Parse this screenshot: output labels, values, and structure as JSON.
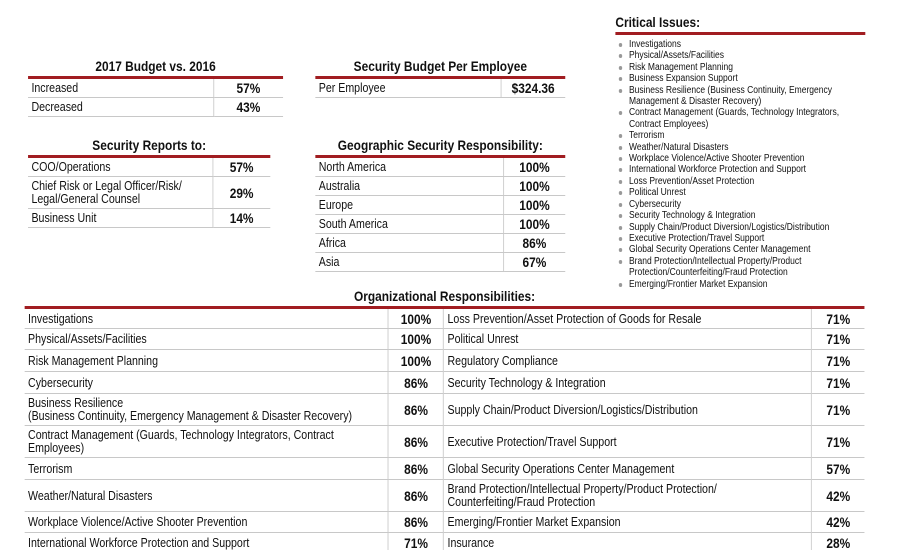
{
  "budget": {
    "title": "2017 Budget vs. 2016",
    "rows": [
      [
        "Increased",
        "57%"
      ],
      [
        "Decreased",
        "43%"
      ]
    ]
  },
  "per_employee": {
    "title": "Security Budget Per Employee",
    "rows": [
      [
        "Per Employee",
        "$324.36"
      ]
    ]
  },
  "reports_to": {
    "title": "Security Reports to:",
    "rows": [
      [
        "COO/Operations",
        "57%"
      ],
      [
        "Chief Risk or Legal Officer/Risk/\nLegal/General Counsel",
        "29%"
      ],
      [
        "Business Unit",
        "14%"
      ]
    ]
  },
  "geographic": {
    "title": "Geographic Security Responsibility:",
    "rows": [
      [
        "North America",
        "100%"
      ],
      [
        "Australia",
        "100%"
      ],
      [
        "Europe",
        "100%"
      ],
      [
        "South America",
        "100%"
      ],
      [
        "Africa",
        "86%"
      ],
      [
        "Asia",
        "67%"
      ]
    ]
  },
  "critical_issues": {
    "title": "Critical Issues:",
    "items": [
      "Investigations",
      "Physical/Assets/Facilities",
      "Risk Management Planning",
      "Business Expansion Support",
      "Business Resilience (Business Continuity, Emergency\nManagement & Disaster Recovery)",
      "Contract Management (Guards, Technology Integrators,\nContract Employees)",
      "Terrorism",
      "Weather/Natural Disasters",
      "Workplace Violence/Active Shooter Prevention",
      "International Workforce Protection and Support",
      "Loss Prevention/Asset Protection",
      "Political Unrest",
      "Cybersecurity",
      "Security Technology & Integration",
      "Supply Chain/Product Diversion/Logistics/Distribution",
      "Executive Protection/Travel Support",
      "Global Security Operations Center Management",
      "Brand Protection/Intellectual Property/Product\nProtection/Counterfeiting/Fraud Protection",
      "Emerging/Frontier Market Expansion"
    ]
  },
  "org": {
    "title": "Organizational Responsibilities:",
    "rows": [
      [
        "Investigations",
        "100%",
        "Loss Prevention/Asset Protection of Goods for Resale",
        "71%"
      ],
      [
        "Physical/Assets/Facilities",
        "100%",
        "Political Unrest",
        "71%"
      ],
      [
        "Risk Management Planning",
        "100%",
        "Regulatory Compliance",
        "71%"
      ],
      [
        "Cybersecurity",
        "86%",
        "Security Technology & Integration",
        "71%"
      ],
      [
        "Business Resilience\n(Business Continuity, Emergency Management & Disaster Recovery)",
        "86%",
        "Supply Chain/Product Diversion/Logistics/Distribution",
        "71%"
      ],
      [
        "Contract Management (Guards, Technology Integrators, Contract Employees)",
        "86%",
        "Executive Protection/Travel Support",
        "71%"
      ],
      [
        "Terrorism",
        "86%",
        "Global Security Operations Center Management",
        "57%"
      ],
      [
        "Weather/Natural Disasters",
        "86%",
        "Brand Protection/Intellectual Property/Product Protection/\nCounterfeiting/Fraud Protection",
        "42%"
      ],
      [
        "Workplace Violence/Active Shooter Prevention",
        "86%",
        "Emerging/Frontier Market Expansion",
        "42%"
      ],
      [
        "International Workforce Protection and Support",
        "71%",
        "Insurance",
        "28%"
      ]
    ]
  }
}
